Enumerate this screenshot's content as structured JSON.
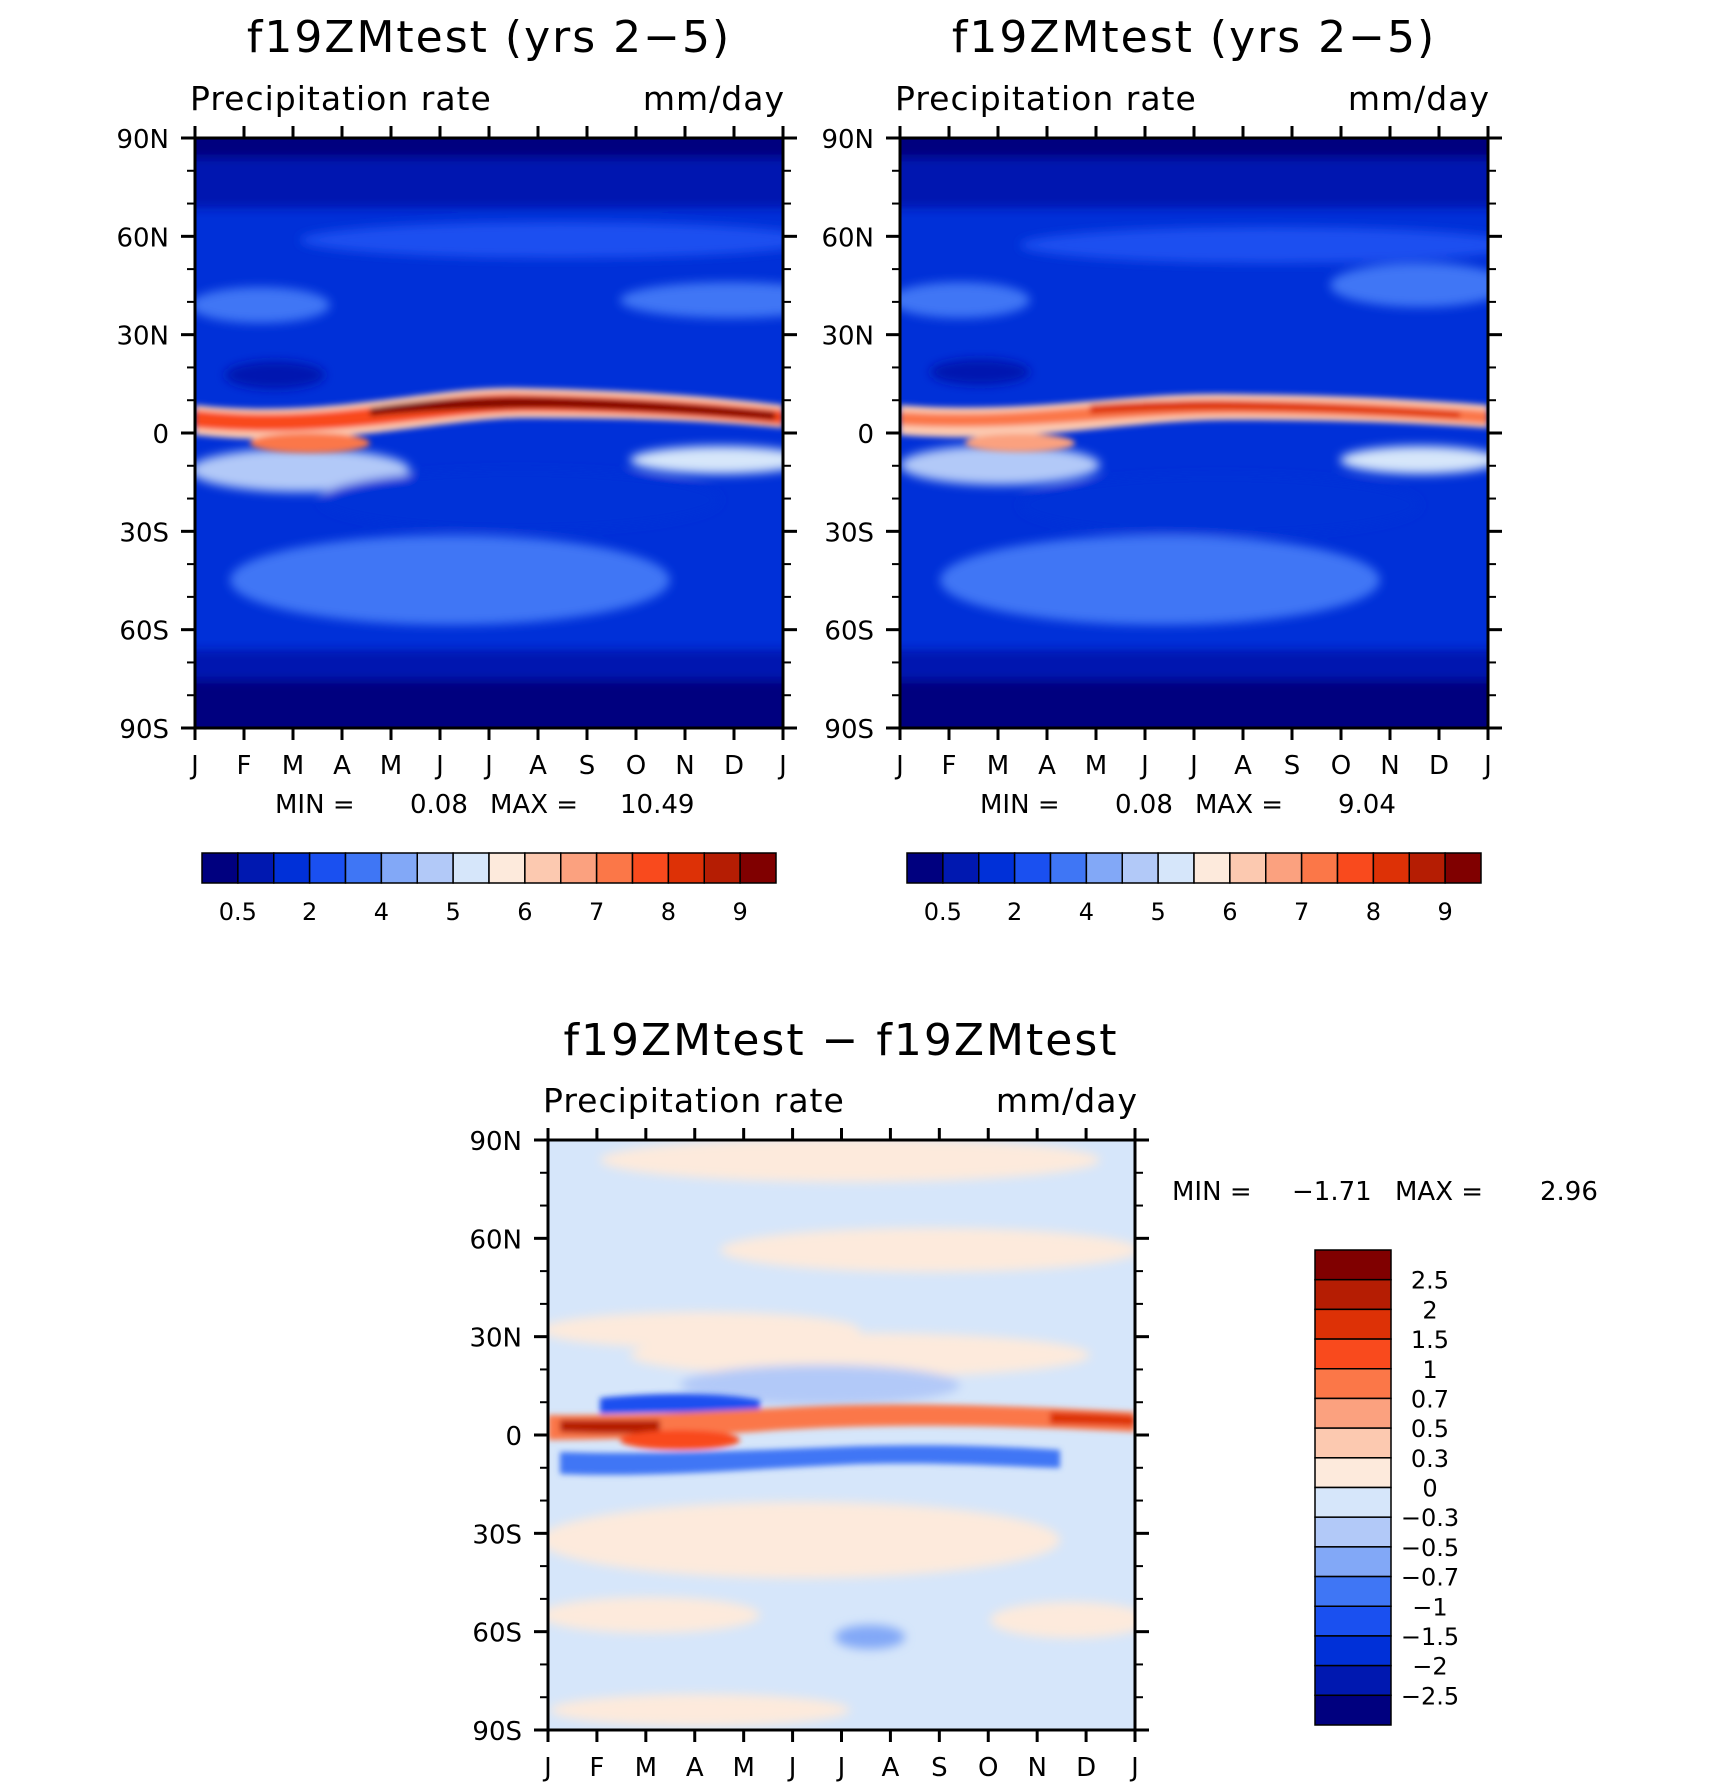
{
  "chart_data": [
    {
      "type": "heatmap",
      "title": "f19ZMtest (yrs 2−5)",
      "left_label": "Precipitation rate",
      "right_label": "mm/day",
      "x_tick_labels": [
        "J",
        "F",
        "M",
        "A",
        "M",
        "J",
        "J",
        "A",
        "S",
        "O",
        "N",
        "D",
        "J"
      ],
      "y_tick_labels": [
        "90N",
        "60N",
        "30N",
        "0",
        "30S",
        "60S",
        "90S"
      ],
      "ylim": [
        -90,
        90
      ],
      "min_label": "MIN =",
      "min_value": "0.08",
      "max_label": "MAX =",
      "max_value": "10.49",
      "colorbar": {
        "orientation": "horizontal",
        "colors": [
          "#00007f",
          "#0018b0",
          "#0030d8",
          "#1a50f0",
          "#3f76f5",
          "#82a8f7",
          "#b2c9f8",
          "#d6e6fa",
          "#fdeadc",
          "#fcc9b0",
          "#fba17f",
          "#fb7748",
          "#f94a1d",
          "#dd3106",
          "#b51d03",
          "#800000"
        ],
        "labels": [
          "0.5",
          "2",
          "4",
          "5",
          "6",
          "7",
          "8",
          "9"
        ]
      },
      "itcz_peak_mm_day": 10.49
    },
    {
      "type": "heatmap",
      "title": "f19ZMtest (yrs 2−5)",
      "left_label": "Precipitation rate",
      "right_label": "mm/day",
      "x_tick_labels": [
        "J",
        "F",
        "M",
        "A",
        "M",
        "J",
        "J",
        "A",
        "S",
        "O",
        "N",
        "D",
        "J"
      ],
      "y_tick_labels": [
        "90N",
        "60N",
        "30N",
        "0",
        "30S",
        "60S",
        "90S"
      ],
      "ylim": [
        -90,
        90
      ],
      "min_label": "MIN =",
      "min_value": "0.08",
      "max_label": "MAX =",
      "max_value": "9.04",
      "colorbar": {
        "orientation": "horizontal",
        "colors": [
          "#00007f",
          "#0018b0",
          "#0030d8",
          "#1a50f0",
          "#3f76f5",
          "#82a8f7",
          "#b2c9f8",
          "#d6e6fa",
          "#fdeadc",
          "#fcc9b0",
          "#fba17f",
          "#fb7748",
          "#f94a1d",
          "#dd3106",
          "#b51d03",
          "#800000"
        ],
        "labels": [
          "0.5",
          "2",
          "4",
          "5",
          "6",
          "7",
          "8",
          "9"
        ]
      },
      "itcz_peak_mm_day": 9.04
    },
    {
      "type": "heatmap",
      "title": "f19ZMtest − f19ZMtest",
      "left_label": "Precipitation rate",
      "right_label": "mm/day",
      "x_tick_labels": [
        "J",
        "F",
        "M",
        "A",
        "M",
        "J",
        "J",
        "A",
        "S",
        "O",
        "N",
        "D",
        "J"
      ],
      "y_tick_labels": [
        "90N",
        "60N",
        "30N",
        "0",
        "30S",
        "60S",
        "90S"
      ],
      "ylim": [
        -90,
        90
      ],
      "min_label": "MIN =",
      "min_value": "−1.71",
      "max_label": "MAX =",
      "max_value": "2.96",
      "colorbar": {
        "orientation": "vertical",
        "colors": [
          "#800000",
          "#b51d03",
          "#dd3106",
          "#f94a1d",
          "#fb7748",
          "#fba17f",
          "#fcc9b0",
          "#fdeadc",
          "#d6e6fa",
          "#b2c9f8",
          "#82a8f7",
          "#3f76f5",
          "#1a50f0",
          "#0030d8",
          "#0018b0",
          "#00007f"
        ],
        "labels": [
          "2.5",
          "2",
          "1.5",
          "1",
          "0.7",
          "0.5",
          "0.3",
          "0",
          "−0.3",
          "−0.5",
          "−0.7",
          "−1",
          "−1.5",
          "−2",
          "−2.5"
        ]
      }
    }
  ]
}
